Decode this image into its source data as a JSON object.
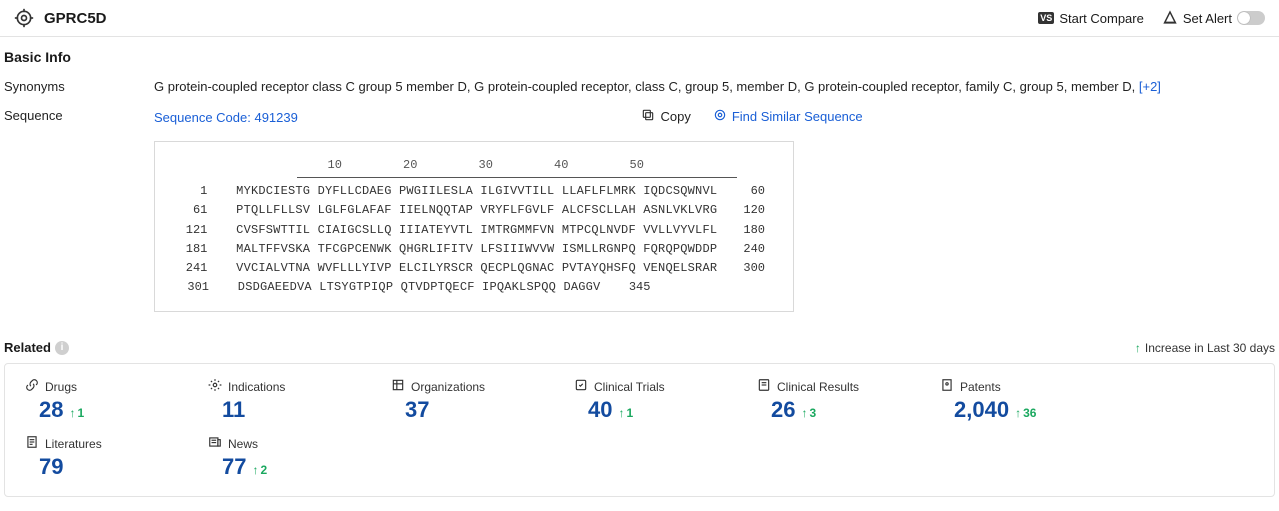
{
  "header": {
    "title": "GPRC5D",
    "start_compare": "Start Compare",
    "set_alert": "Set Alert"
  },
  "basic_info": {
    "section_title": "Basic Info",
    "synonyms_label": "Synonyms",
    "synonyms": [
      "G protein-coupled receptor class C group 5 member D",
      "G protein-coupled receptor, class C, group 5, member D",
      "G protein-coupled receptor, family C, group 5, member D"
    ],
    "synonyms_more": "[+2]",
    "sequence_label": "Sequence",
    "sequence_code": "Sequence Code: 491239",
    "copy_label": "Copy",
    "find_label": "Find Similar Sequence",
    "ruler": [
      "10",
      "20",
      "30",
      "40",
      "50"
    ],
    "seq_lines": [
      {
        "start": "1",
        "body": "MYKDCIESTG DYFLLCDAEG PWGIILESLA ILGIVVTILL LLAFLFLMRK IQDCSQWNVL",
        "end": "60"
      },
      {
        "start": "61",
        "body": "PTQLLFLLSV LGLFGLAFAF IIELNQQTAP VRYFLFGVLF ALCFSCLLAH ASNLVKLVRG",
        "end": "120"
      },
      {
        "start": "121",
        "body": "CVSFSWTTIL CIAIGCSLLQ IIIATEYVTL IMTRGMMFVN MTPCQLNVDF VVLLVYVLFL",
        "end": "180"
      },
      {
        "start": "181",
        "body": "MALTFFVSKA TFCGPCENWK QHGRLIFITV LFSIIIWVVW ISMLLRGNPQ FQRQPQWDDP",
        "end": "240"
      },
      {
        "start": "241",
        "body": "VVCIALVTNA WVFLLLYIVP ELCILYRSCR QECPLQGNAC PVTAYQHSFQ VENQELSRAR",
        "end": "300"
      },
      {
        "start": "301",
        "body": "DSDGAEEDVA LTSYGTPIQP QTVDPTQECF IPQAKLSPQQ DAGGV",
        "end": "345"
      }
    ]
  },
  "related": {
    "title": "Related",
    "legend": "Increase in Last 30 days",
    "cards": [
      {
        "icon": "link",
        "label": "Drugs",
        "value": "28",
        "delta": "1"
      },
      {
        "icon": "gear",
        "label": "Indications",
        "value": "11",
        "delta": null
      },
      {
        "icon": "org",
        "label": "Organizations",
        "value": "37",
        "delta": null
      },
      {
        "icon": "trial",
        "label": "Clinical Trials",
        "value": "40",
        "delta": "1"
      },
      {
        "icon": "result",
        "label": "Clinical Results",
        "value": "26",
        "delta": "3"
      },
      {
        "icon": "patent",
        "label": "Patents",
        "value": "2,040",
        "delta": "36"
      },
      {
        "icon": "lit",
        "label": "Literatures",
        "value": "79",
        "delta": null
      },
      {
        "icon": "news",
        "label": "News",
        "value": "77",
        "delta": "2"
      }
    ]
  },
  "colors": {
    "link": "#1a5fd6",
    "value": "#134b9f",
    "up": "#1aa85f",
    "border": "#e3e3e3"
  }
}
